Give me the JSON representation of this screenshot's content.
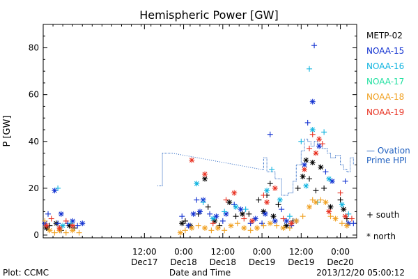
{
  "chart_data": {
    "type": "scatter",
    "title": "Hemispheric Power [GW]",
    "ylabel": "P [GW]",
    "xlabel": "Date and Time",
    "xlim": [
      "2013-12-16T05:00",
      "2013-12-20T05:00"
    ],
    "ylim": [
      0,
      90
    ],
    "yticks": [
      0,
      20,
      40,
      60,
      80
    ],
    "xticks": [
      {
        "t": "2013-12-17T12:00",
        "line1": "12:00",
        "line2": "Dec17"
      },
      {
        "t": "2013-12-18T00:00",
        "line1": "0:00",
        "line2": "Dec18"
      },
      {
        "t": "2013-12-18T12:00",
        "line1": "12:00",
        "line2": "Dec18"
      },
      {
        "t": "2013-12-19T00:00",
        "line1": "0:00",
        "line2": "Dec19"
      },
      {
        "t": "2013-12-19T12:00",
        "line1": "12:00",
        "line2": "Dec19"
      },
      {
        "t": "2013-12-20T00:00",
        "line1": "0:00",
        "line2": "Dec20"
      }
    ],
    "legend": {
      "placement": "right",
      "satellites": [
        {
          "name": "METP-02",
          "color": "#000000"
        },
        {
          "name": "NOAA-15",
          "color": "#1030d0"
        },
        {
          "name": "NOAA-16",
          "color": "#10b4e0"
        },
        {
          "name": "NOAA-17",
          "color": "#20e0a0"
        },
        {
          "name": "NOAA-18",
          "color": "#f0a020"
        },
        {
          "name": "NOAA-19",
          "color": "#e83020"
        }
      ],
      "ovation_label_1": "— Ovation",
      "ovation_label_2": "Prime HPI",
      "ovation_color": "#2060c0",
      "south_label": "+ south",
      "north_label": "* north"
    },
    "ovation_hpi": [
      {
        "t": "2013-12-17T16:00",
        "y": 21
      },
      {
        "t": "2013-12-17T17:30",
        "y": 35
      },
      {
        "t": "2013-12-17T20:30",
        "y": 35
      },
      {
        "t": "2013-12-19T00:00",
        "y": 28
      },
      {
        "t": "2013-12-19T00:30",
        "y": 33
      },
      {
        "t": "2013-12-19T01:30",
        "y": 27
      },
      {
        "t": "2013-12-19T04:00",
        "y": 24
      },
      {
        "t": "2013-12-19T06:00",
        "y": 17
      },
      {
        "t": "2013-12-19T08:00",
        "y": 18
      },
      {
        "t": "2013-12-19T09:30",
        "y": 23
      },
      {
        "t": "2013-12-19T10:30",
        "y": 30
      },
      {
        "t": "2013-12-19T12:00",
        "y": 36
      },
      {
        "t": "2013-12-19T13:00",
        "y": 41
      },
      {
        "t": "2013-12-19T14:00",
        "y": 40
      },
      {
        "t": "2013-12-19T15:00",
        "y": 38
      },
      {
        "t": "2013-12-19T16:00",
        "y": 40
      },
      {
        "t": "2013-12-19T17:00",
        "y": 38
      },
      {
        "t": "2013-12-19T18:30",
        "y": 37
      },
      {
        "t": "2013-12-19T20:00",
        "y": 35
      },
      {
        "t": "2013-12-19T21:00",
        "y": 33
      },
      {
        "t": "2013-12-19T22:30",
        "y": 34
      },
      {
        "t": "2013-12-20T00:00",
        "y": 30
      },
      {
        "t": "2013-12-20T01:00",
        "y": 28
      },
      {
        "t": "2013-12-20T02:00",
        "y": 27
      },
      {
        "t": "2013-12-20T03:00",
        "y": 33
      },
      {
        "t": "2013-12-20T04:00",
        "y": 30
      }
    ],
    "ovation_dotted_from": "2013-12-17T20:30",
    "ovation_dotted_to": "2013-12-19T00:00",
    "series": [
      {
        "name": "METP-02",
        "color": "#000000",
        "points": [
          [
            "2013-12-16T06:00",
            3,
            "n"
          ],
          [
            "2013-12-16T07:00",
            4,
            "s"
          ],
          [
            "2013-12-16T09:00",
            5,
            "n"
          ],
          [
            "2013-12-16T10:30",
            2,
            "s"
          ],
          [
            "2013-12-16T13:00",
            4,
            "n"
          ],
          [
            "2013-12-16T14:30",
            3,
            "s"
          ],
          [
            "2013-12-17T23:30",
            5,
            "n"
          ],
          [
            "2013-12-18T00:30",
            6,
            "s"
          ],
          [
            "2013-12-18T02:00",
            4,
            "n"
          ],
          [
            "2013-12-18T04:30",
            9,
            "s"
          ],
          [
            "2013-12-18T06:30",
            24,
            "n"
          ],
          [
            "2013-12-18T07:30",
            12,
            "s"
          ],
          [
            "2013-12-18T09:30",
            6,
            "n"
          ],
          [
            "2013-12-18T11:00",
            4,
            "s"
          ],
          [
            "2013-12-18T14:00",
            14,
            "n"
          ],
          [
            "2013-12-18T16:00",
            8,
            "s"
          ],
          [
            "2013-12-18T18:00",
            9,
            "n"
          ],
          [
            "2013-12-18T20:00",
            9,
            "s"
          ],
          [
            "2013-12-18T23:00",
            15,
            "s"
          ],
          [
            "2013-12-19T00:30",
            10,
            "n"
          ],
          [
            "2013-12-19T01:30",
            17,
            "s"
          ],
          [
            "2013-12-19T02:30",
            22,
            "s"
          ],
          [
            "2013-12-19T03:30",
            8,
            "n"
          ],
          [
            "2013-12-19T05:00",
            13,
            "s"
          ],
          [
            "2013-12-19T07:30",
            4,
            "n"
          ],
          [
            "2013-12-19T09:30",
            6,
            "s"
          ],
          [
            "2013-12-19T11:00",
            20,
            "s"
          ],
          [
            "2013-12-19T12:30",
            25,
            "n"
          ],
          [
            "2013-12-19T13:30",
            32,
            "n"
          ],
          [
            "2013-12-19T14:30",
            24,
            "s"
          ],
          [
            "2013-12-19T15:30",
            31,
            "n"
          ],
          [
            "2013-12-19T16:30",
            19,
            "s"
          ],
          [
            "2013-12-19T18:00",
            29,
            "n"
          ],
          [
            "2013-12-19T19:00",
            20,
            "s"
          ],
          [
            "2013-12-19T21:00",
            12,
            "n"
          ],
          [
            "2013-12-20T00:00",
            15,
            "s"
          ],
          [
            "2013-12-20T01:00",
            11,
            "n"
          ],
          [
            "2013-12-20T02:00",
            7,
            "s"
          ]
        ]
      },
      {
        "name": "NOAA-15",
        "color": "#1030d0",
        "points": [
          [
            "2013-12-16T05:30",
            5,
            "n"
          ],
          [
            "2013-12-16T06:30",
            9,
            "s"
          ],
          [
            "2013-12-16T08:30",
            19,
            "n"
          ],
          [
            "2013-12-16T09:30",
            5,
            "s"
          ],
          [
            "2013-12-16T10:30",
            9,
            "n"
          ],
          [
            "2013-12-16T12:30",
            5,
            "s"
          ],
          [
            "2013-12-16T14:00",
            6,
            "n"
          ],
          [
            "2013-12-16T15:30",
            4,
            "s"
          ],
          [
            "2013-12-16T17:00",
            5,
            "n"
          ],
          [
            "2013-12-17T23:30",
            8,
            "s"
          ],
          [
            "2013-12-18T01:30",
            4,
            "n"
          ],
          [
            "2013-12-18T03:00",
            9,
            "n"
          ],
          [
            "2013-12-18T04:00",
            15,
            "s"
          ],
          [
            "2013-12-18T05:00",
            10,
            "n"
          ],
          [
            "2013-12-18T06:00",
            15,
            "n"
          ],
          [
            "2013-12-18T08:00",
            9,
            "s"
          ],
          [
            "2013-12-18T10:00",
            8,
            "n"
          ],
          [
            "2013-12-18T12:00",
            6,
            "s"
          ],
          [
            "2013-12-18T13:00",
            9,
            "n"
          ],
          [
            "2013-12-18T15:30",
            13,
            "s"
          ],
          [
            "2013-12-18T17:30",
            11,
            "n"
          ],
          [
            "2013-12-18T20:30",
            5,
            "s"
          ],
          [
            "2013-12-18T22:00",
            7,
            "n"
          ],
          [
            "2013-12-19T00:00",
            5,
            "s"
          ],
          [
            "2013-12-19T01:00",
            9,
            "n"
          ],
          [
            "2013-12-19T02:30",
            43,
            "s"
          ],
          [
            "2013-12-19T04:00",
            6,
            "n"
          ],
          [
            "2013-12-19T06:00",
            11,
            "s"
          ],
          [
            "2013-12-19T07:30",
            6,
            "n"
          ],
          [
            "2013-12-19T09:00",
            4,
            "s"
          ],
          [
            "2013-12-19T10:30",
            6,
            "n"
          ],
          [
            "2013-12-19T13:00",
            30,
            "n"
          ],
          [
            "2013-12-19T14:00",
            48,
            "s"
          ],
          [
            "2013-12-19T15:30",
            57,
            "n"
          ],
          [
            "2013-12-19T16:00",
            81,
            "s"
          ],
          [
            "2013-12-19T17:30",
            38,
            "n"
          ],
          [
            "2013-12-19T19:30",
            27,
            "s"
          ],
          [
            "2013-12-19T21:30",
            23,
            "n"
          ],
          [
            "2013-12-20T01:30",
            23,
            "s"
          ],
          [
            "2013-12-20T02:30",
            5,
            "n"
          ],
          [
            "2013-12-20T04:00",
            5,
            "s"
          ]
        ]
      },
      {
        "name": "NOAA-16",
        "color": "#10b4e0",
        "points": [
          [
            "2013-12-16T09:30",
            20,
            "s"
          ],
          [
            "2013-12-16T11:00",
            4,
            "n"
          ],
          [
            "2013-12-16T13:30",
            5,
            "s"
          ],
          [
            "2013-12-18T04:00",
            22,
            "n"
          ],
          [
            "2013-12-18T06:00",
            14,
            "s"
          ],
          [
            "2013-12-18T09:00",
            7,
            "n"
          ],
          [
            "2013-12-18T12:30",
            10,
            "s"
          ],
          [
            "2013-12-18T16:00",
            12,
            "n"
          ],
          [
            "2013-12-18T19:00",
            11,
            "s"
          ],
          [
            "2013-12-19T01:30",
            19,
            "n"
          ],
          [
            "2013-12-19T03:00",
            28,
            "s"
          ],
          [
            "2013-12-19T05:30",
            15,
            "n"
          ],
          [
            "2013-12-19T08:30",
            8,
            "s"
          ],
          [
            "2013-12-19T12:00",
            40,
            "s"
          ],
          [
            "2013-12-19T13:30",
            21,
            "n"
          ],
          [
            "2013-12-19T14:30",
            71,
            "s"
          ],
          [
            "2013-12-19T15:30",
            45,
            "n"
          ],
          [
            "2013-12-19T17:00",
            14,
            "s"
          ],
          [
            "2013-12-19T19:00",
            44,
            "s"
          ],
          [
            "2013-12-19T20:30",
            24,
            "n"
          ],
          [
            "2013-12-20T00:30",
            13,
            "n"
          ],
          [
            "2013-12-20T02:30",
            9,
            "s"
          ]
        ]
      },
      {
        "name": "NOAA-17",
        "color": "#20e0a0",
        "points": []
      },
      {
        "name": "NOAA-18",
        "color": "#f0a020",
        "points": [
          [
            "2013-12-16T05:30",
            6,
            "s"
          ],
          [
            "2013-12-16T07:00",
            2,
            "n"
          ],
          [
            "2013-12-16T08:30",
            1,
            "s"
          ],
          [
            "2013-12-16T10:00",
            2,
            "n"
          ],
          [
            "2013-12-16T12:00",
            1,
            "s"
          ],
          [
            "2013-12-16T14:00",
            2,
            "n"
          ],
          [
            "2013-12-16T16:00",
            1,
            "s"
          ],
          [
            "2013-12-17T23:00",
            1,
            "n"
          ],
          [
            "2013-12-18T00:30",
            2,
            "s"
          ],
          [
            "2013-12-18T02:30",
            3,
            "n"
          ],
          [
            "2013-12-18T04:30",
            4,
            "s"
          ],
          [
            "2013-12-18T06:30",
            3,
            "n"
          ],
          [
            "2013-12-18T08:30",
            2,
            "s"
          ],
          [
            "2013-12-18T10:30",
            3,
            "n"
          ],
          [
            "2013-12-18T12:30",
            2,
            "s"
          ],
          [
            "2013-12-18T14:30",
            4,
            "n"
          ],
          [
            "2013-12-18T16:30",
            5,
            "s"
          ],
          [
            "2013-12-18T18:30",
            3,
            "n"
          ],
          [
            "2013-12-18T20:30",
            2,
            "s"
          ],
          [
            "2013-12-18T22:30",
            3,
            "n"
          ],
          [
            "2013-12-19T00:30",
            4,
            "s"
          ],
          [
            "2013-12-19T02:30",
            5,
            "n"
          ],
          [
            "2013-12-19T04:30",
            4,
            "s"
          ],
          [
            "2013-12-19T06:30",
            3,
            "n"
          ],
          [
            "2013-12-19T08:30",
            3,
            "s"
          ],
          [
            "2013-12-19T10:30",
            6,
            "n"
          ],
          [
            "2013-12-19T12:30",
            8,
            "s"
          ],
          [
            "2013-12-19T14:30",
            12,
            "n"
          ],
          [
            "2013-12-19T15:30",
            15,
            "s"
          ],
          [
            "2013-12-19T16:30",
            14,
            "n"
          ],
          [
            "2013-12-19T18:00",
            15,
            "s"
          ],
          [
            "2013-12-19T19:30",
            14,
            "n"
          ],
          [
            "2013-12-19T21:00",
            8,
            "s"
          ],
          [
            "2013-12-19T22:30",
            7,
            "n"
          ],
          [
            "2013-12-20T00:30",
            5,
            "s"
          ],
          [
            "2013-12-20T02:00",
            4,
            "n"
          ]
        ]
      },
      {
        "name": "NOAA-19",
        "color": "#e83020",
        "points": [
          [
            "2013-12-16T06:00",
            4,
            "n"
          ],
          [
            "2013-12-16T07:30",
            7,
            "s"
          ],
          [
            "2013-12-16T10:00",
            3,
            "n"
          ],
          [
            "2013-12-16T12:00",
            6,
            "s"
          ],
          [
            "2013-12-16T14:00",
            4,
            "n"
          ],
          [
            "2013-12-18T02:30",
            32,
            "n"
          ],
          [
            "2013-12-18T06:30",
            26,
            "n"
          ],
          [
            "2013-12-18T09:00",
            5,
            "s"
          ],
          [
            "2013-12-18T13:00",
            15,
            "s"
          ],
          [
            "2013-12-18T15:30",
            18,
            "n"
          ],
          [
            "2013-12-18T18:30",
            7,
            "s"
          ],
          [
            "2013-12-18T21:00",
            6,
            "n"
          ],
          [
            "2013-12-19T00:30",
            17,
            "s"
          ],
          [
            "2013-12-19T01:30",
            14,
            "n"
          ],
          [
            "2013-12-19T04:00",
            20,
            "n"
          ],
          [
            "2013-12-19T06:30",
            7,
            "s"
          ],
          [
            "2013-12-19T09:00",
            5,
            "n"
          ],
          [
            "2013-12-19T13:00",
            28,
            "n"
          ],
          [
            "2013-12-19T14:30",
            37,
            "s"
          ],
          [
            "2013-12-19T15:30",
            43,
            "s"
          ],
          [
            "2013-12-19T16:30",
            35,
            "n"
          ],
          [
            "2013-12-19T17:30",
            41,
            "n"
          ],
          [
            "2013-12-19T18:30",
            39,
            "s"
          ],
          [
            "2013-12-19T20:30",
            10,
            "n"
          ],
          [
            "2013-12-20T00:00",
            18,
            "s"
          ],
          [
            "2013-12-20T01:30",
            8,
            "n"
          ],
          [
            "2013-12-20T03:30",
            7,
            "s"
          ]
        ]
      }
    ]
  },
  "footer": {
    "plot_credit": "Plot: CCMC",
    "timestamp": "2013/12/20 05:00:12"
  }
}
